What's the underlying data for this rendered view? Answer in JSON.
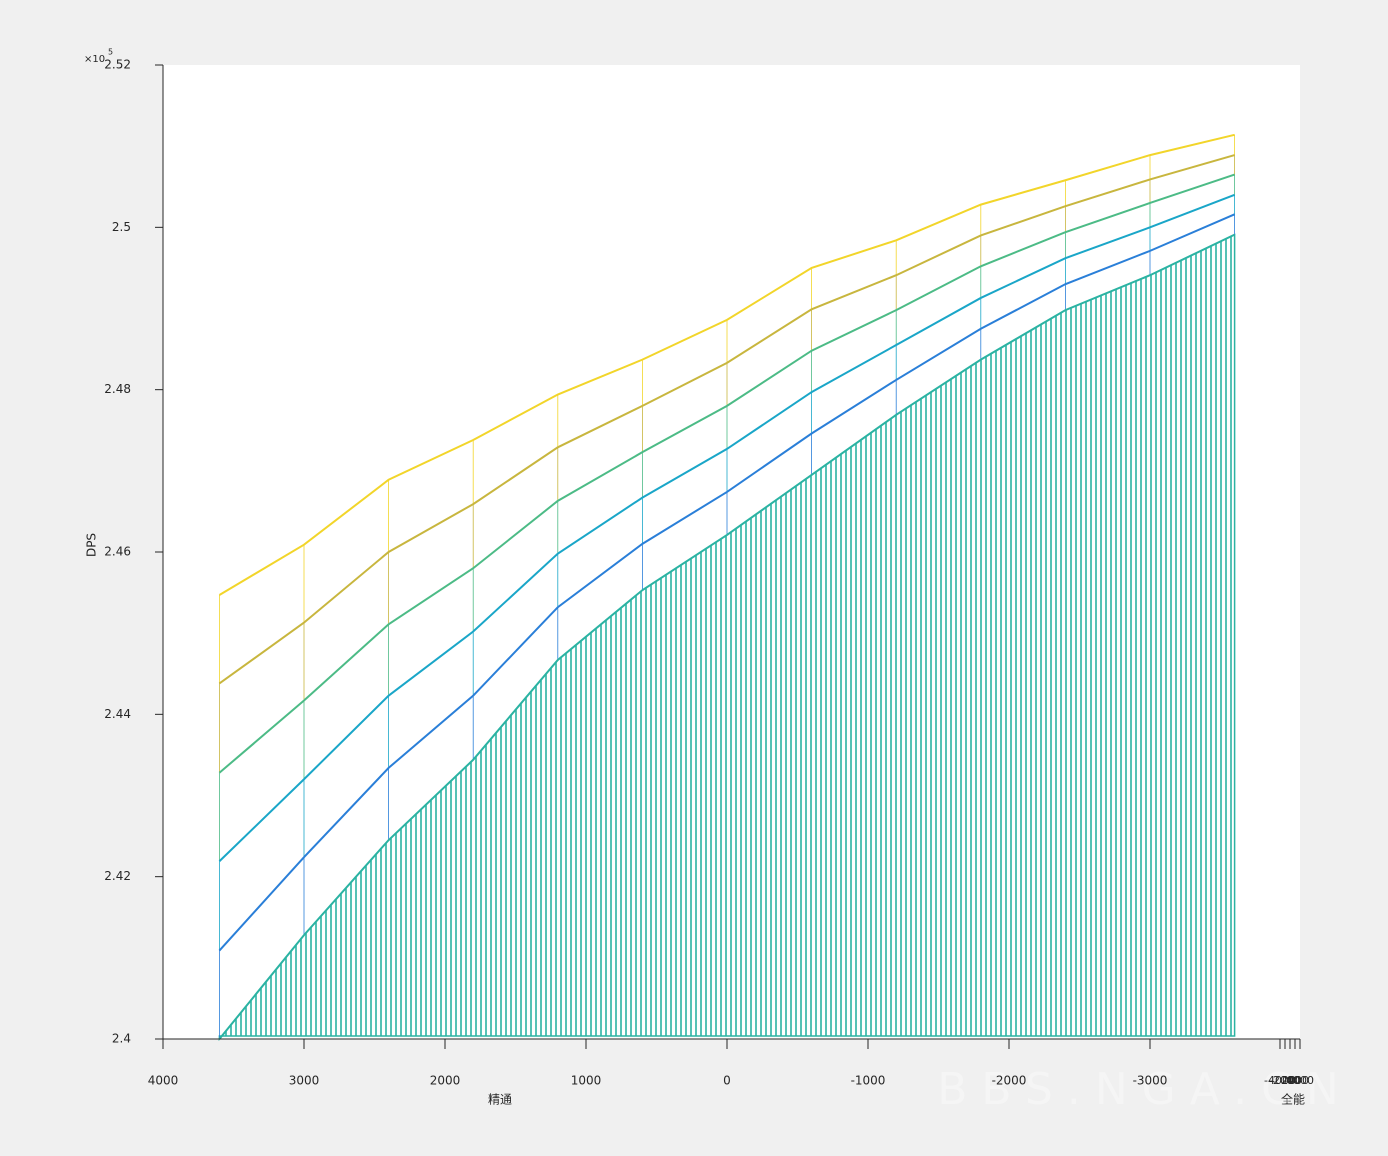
{
  "chart_data": {
    "type": "line",
    "xlabel": "精通",
    "ylabel": "DPS",
    "zlabel": "全能",
    "y_multiplier": {
      "base": "×10",
      "exponent": "5"
    },
    "watermark": "BBS.NGA.CN",
    "x": [
      3600,
      3000,
      2400,
      1800,
      1200,
      600,
      0,
      -600,
      -1200,
      -1800,
      -2400,
      -3000,
      -3600
    ],
    "series": [
      {
        "color": "#2bb3a3",
        "values": [
          240000,
          241280,
          242450,
          243440,
          244670,
          245530,
          246210,
          246950,
          247690,
          248370,
          248980,
          249410,
          249910
        ]
      },
      {
        "color": "#2a7fd8",
        "values": [
          241090,
          242240,
          243340,
          244230,
          245320,
          246100,
          246740,
          247460,
          248120,
          248750,
          249300,
          249710,
          250160
        ]
      },
      {
        "color": "#1aa6c8",
        "values": [
          242190,
          243200,
          244230,
          245020,
          245980,
          246670,
          247270,
          247970,
          248550,
          249130,
          249620,
          250000,
          250400
        ]
      },
      {
        "color": "#4cbb86",
        "values": [
          243280,
          244170,
          245110,
          245800,
          246630,
          247230,
          247800,
          248480,
          248980,
          249520,
          249940,
          250300,
          250650
        ]
      },
      {
        "color": "#c8b63e",
        "values": [
          244380,
          245130,
          246000,
          246590,
          247290,
          247800,
          248330,
          248990,
          249410,
          249900,
          250260,
          250590,
          250890
        ]
      },
      {
        "color": "#f2d52a",
        "values": [
          245470,
          246090,
          246890,
          247380,
          247940,
          248370,
          248860,
          249500,
          249840,
          250280,
          250580,
          250890,
          251140
        ]
      }
    ],
    "xlim": [
      4000,
      -4000
    ],
    "xticks": [
      4000,
      3000,
      2000,
      1000,
      0,
      -1000,
      -2000,
      -3000
    ],
    "ylim": [
      240000,
      252000
    ],
    "yticks": [
      {
        "value": 240000,
        "label": "2.4"
      },
      {
        "value": 242000,
        "label": "2.42"
      },
      {
        "value": 244000,
        "label": "2.44"
      },
      {
        "value": 246000,
        "label": "2.46"
      },
      {
        "value": 248000,
        "label": "2.48"
      },
      {
        "value": 250000,
        "label": "2.5"
      },
      {
        "value": 252000,
        "label": "2.52"
      }
    ],
    "zlim": [
      -4000,
      4000
    ],
    "zticks": [
      -4000,
      -2000,
      0,
      2000,
      4000
    ],
    "curtain_color": "#2bb3a3"
  }
}
